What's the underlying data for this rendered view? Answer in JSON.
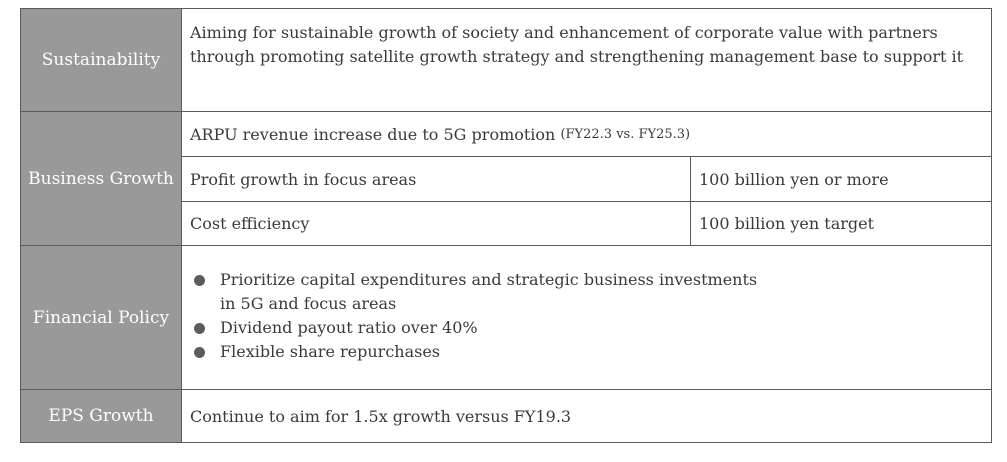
{
  "rows": {
    "sustainability": {
      "label": "Sustainability",
      "text": "Aiming for sustainable growth of society and enhancement of corporate value with partners through promoting satellite growth strategy and strengthening management base to support it"
    },
    "business_growth": {
      "label": "Business Growth",
      "arpu": "ARPU revenue increase due to 5G promotion",
      "arpu_note": "(FY22.3 vs. FY25.3)",
      "profit_label": "Profit growth in focus areas",
      "profit_value": "100 billion yen or more",
      "cost_label": "Cost efficiency",
      "cost_value": "100 billion yen target"
    },
    "financial_policy": {
      "label": "Financial Policy",
      "bullets": [
        "Prioritize capital expenditures and strategic business investments",
        "Dividend payout ratio over 40%",
        "Flexible share repurchases"
      ],
      "bullet_continuation": "in 5G and focus areas"
    },
    "eps_growth": {
      "label": "EPS Growth",
      "text": "Continue to aim for 1.5x growth versus FY19.3"
    }
  },
  "colors": {
    "header_bg": "#999999",
    "border": "#5a5a5a",
    "text": "#3a3a3a",
    "bullet": "#5c5c5c"
  }
}
